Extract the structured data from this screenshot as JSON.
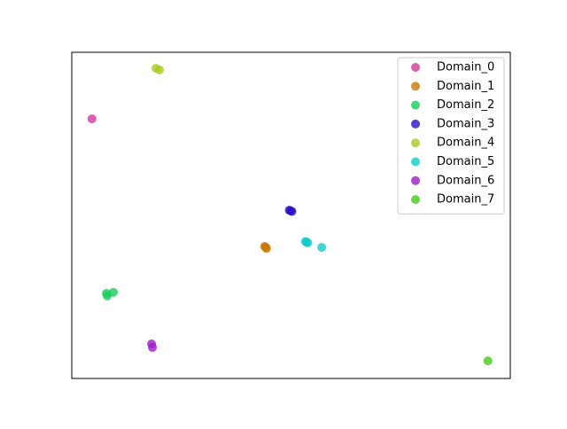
{
  "chart_data": {
    "type": "scatter",
    "xlim": [
      0,
      100
    ],
    "ylim": [
      0,
      100
    ],
    "legend": "upper right",
    "series": [
      {
        "name": "Domain_0",
        "color": "#d6349b",
        "x": [
          4.6
        ],
        "y": [
          79.6
        ]
      },
      {
        "name": "Domain_1",
        "color": "#cc7700",
        "x": [
          44.0,
          44.4,
          44.2
        ],
        "y": [
          40.5,
          39.9,
          40.2
        ]
      },
      {
        "name": "Domain_2",
        "color": "#16cc5a",
        "x": [
          7.9,
          8.1,
          9.5
        ],
        "y": [
          26.1,
          25.3,
          26.4
        ]
      },
      {
        "name": "Domain_3",
        "color": "#2a0fcc",
        "x": [
          49.6,
          50.2,
          49.9
        ],
        "y": [
          51.6,
          51.2,
          51.4
        ]
      },
      {
        "name": "Domain_4",
        "color": "#a8cc1a",
        "x": [
          19.2,
          20.0
        ],
        "y": [
          95.1,
          94.6
        ]
      },
      {
        "name": "Domain_5",
        "color": "#0fcccc",
        "x": [
          53.8,
          53.3,
          53.5,
          57.0
        ],
        "y": [
          41.6,
          42.0,
          41.8,
          40.2
        ]
      },
      {
        "name": "Domain_6",
        "color": "#a11acc",
        "x": [
          18.2,
          18.4
        ],
        "y": [
          10.6,
          9.5
        ]
      },
      {
        "name": "Domain_7",
        "color": "#43cc1a",
        "x": [
          94.9
        ],
        "y": [
          5.4
        ]
      }
    ]
  }
}
